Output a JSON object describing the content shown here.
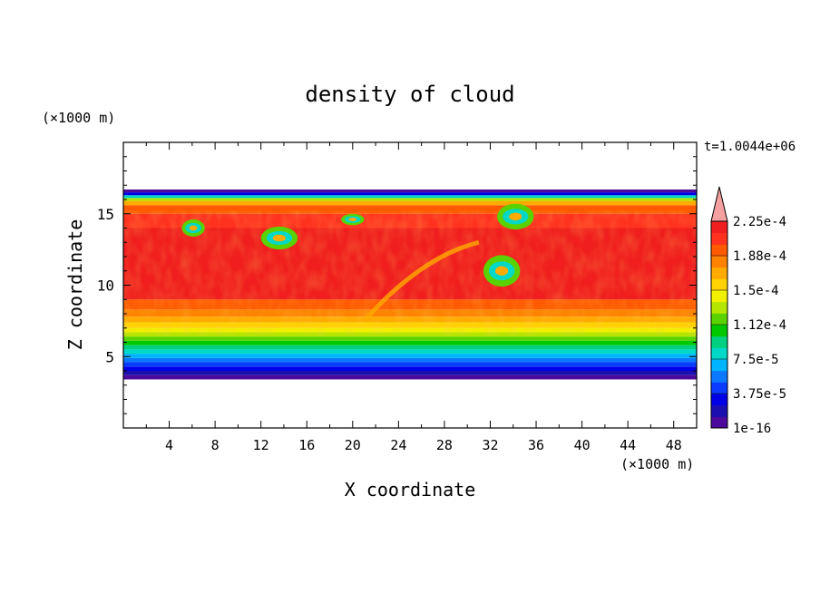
{
  "chart_data": {
    "type": "heatmap",
    "title": "density of cloud",
    "xlabel": "X coordinate",
    "ylabel": "Z coordinate",
    "x_unit": "(×1000 m)",
    "y_unit": "(×1000 m)",
    "time_label": "t=1.0044e+06",
    "xlim": [
      0,
      50
    ],
    "ylim": [
      0,
      20
    ],
    "x_ticks": [
      4,
      8,
      12,
      16,
      20,
      24,
      28,
      32,
      36,
      40,
      44,
      48
    ],
    "y_ticks": [
      5,
      10,
      15
    ],
    "x_tick_labels": [
      "4",
      "8",
      "12",
      "16",
      "20",
      "24",
      "28",
      "32",
      "36",
      "40",
      "44",
      "48"
    ],
    "y_tick_labels": [
      "5",
      "10",
      "15"
    ],
    "colorbar": {
      "levels": [
        "1e-16",
        "3.75e-5",
        "7.5e-5",
        "1.12e-4",
        "1.5e-4",
        "1.88e-4",
        "2.25e-4"
      ],
      "level_values": [
        1e-16,
        3.75e-05,
        7.5e-05,
        0.000112,
        0.00015,
        0.000188,
        0.000225
      ],
      "colors": [
        "#4b0a9b",
        "#1c0fb0",
        "#0000e6",
        "#0a3cff",
        "#0a78ff",
        "#00b4ff",
        "#00d8c8",
        "#00d080",
        "#00c800",
        "#5ad200",
        "#b4e600",
        "#f0f000",
        "#ffd200",
        "#ffaa00",
        "#ff8200",
        "#ff5a00",
        "#ff3220",
        "#f01e1e"
      ],
      "extend_color": "#f4a0a0"
    },
    "cloud_extent": {
      "z_bottom": 3.4,
      "z_top": 16.7,
      "x_min": 0,
      "x_max": 50
    },
    "dominant_value_range": "above 2.25e-4 in cloud interior (≈6–15 km)"
  }
}
